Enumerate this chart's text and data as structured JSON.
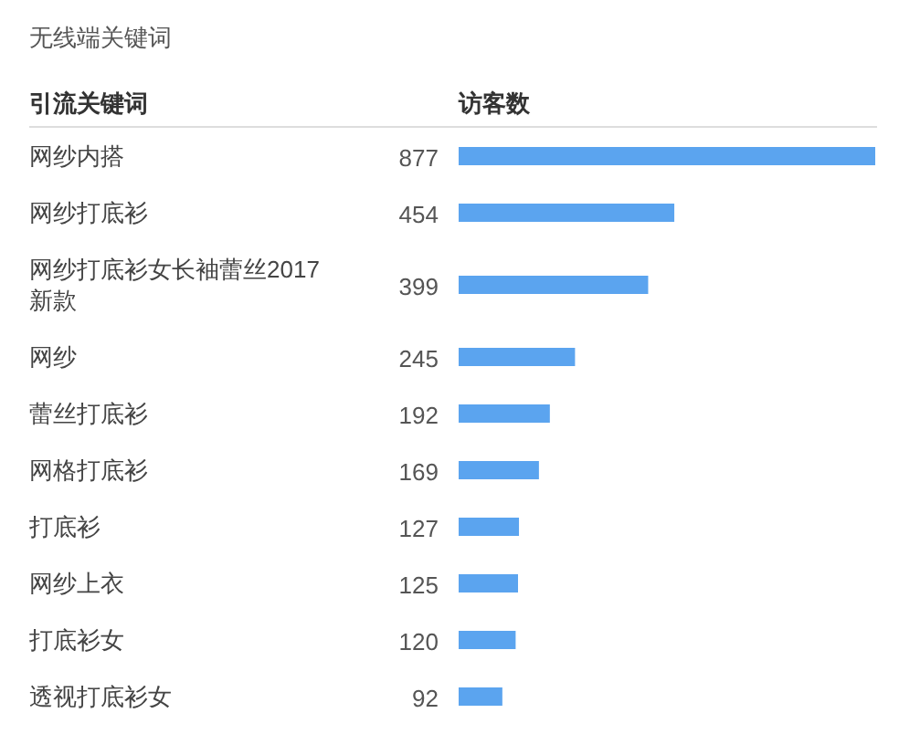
{
  "chart_data": {
    "type": "bar",
    "orientation": "horizontal",
    "title": "无线端关键词",
    "ylabel": "引流关键词",
    "xlabel": "访客数",
    "categories": [
      "网纱内搭",
      "网纱打底衫",
      "网纱打底衫女长袖蕾丝2017新款",
      "网纱",
      "蕾丝打底衫",
      "网格打底衫",
      "打底衫",
      "网纱上衣",
      "打底衫女",
      "透视打底衫女"
    ],
    "values": [
      877,
      454,
      399,
      245,
      192,
      169,
      127,
      125,
      120,
      92
    ],
    "color": "#5ba4ef",
    "data_labels": true
  }
}
